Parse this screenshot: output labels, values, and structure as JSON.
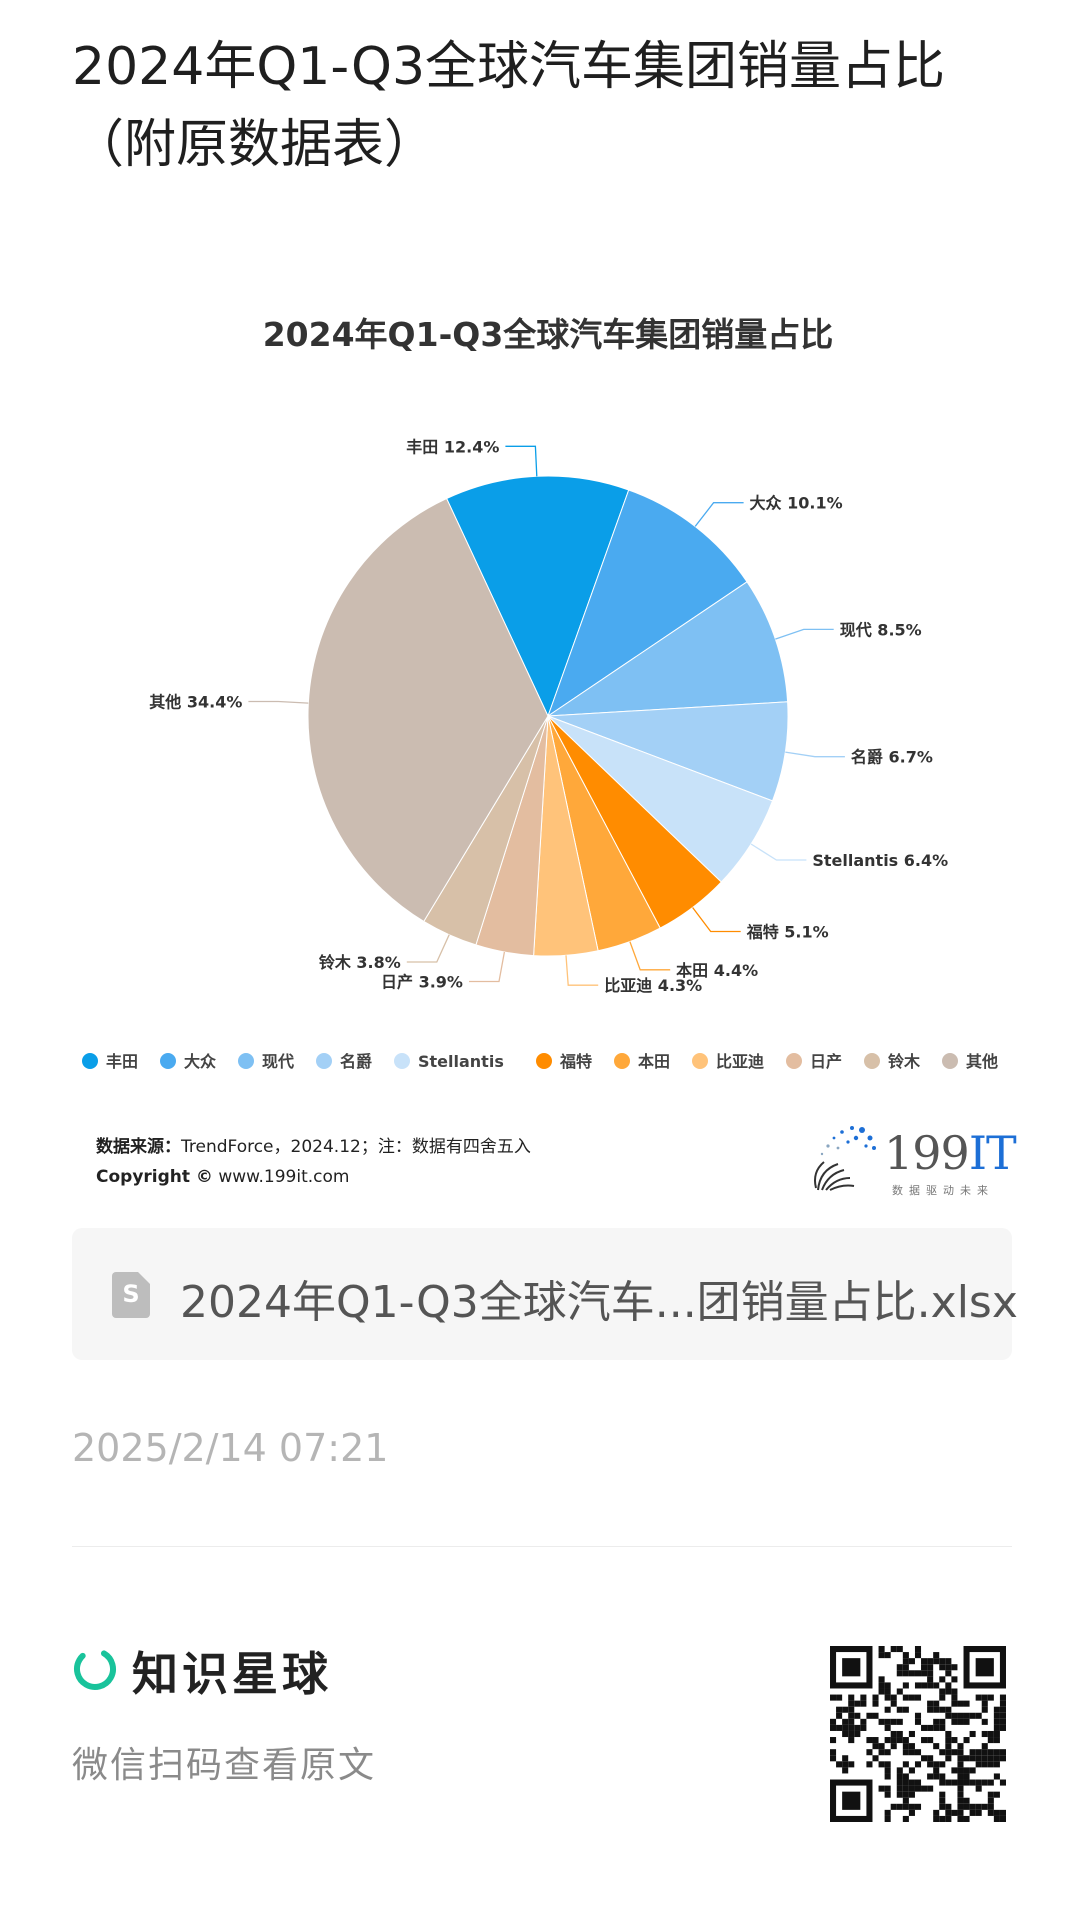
{
  "page": {
    "title": "2024年Q1-Q3全球汽车集团销量占比（附原数据表）"
  },
  "chart_data": {
    "type": "pie",
    "title": "2024年Q1-Q3全球汽车集团销量占比",
    "slices": [
      {
        "name": "丰田",
        "value": 12.4,
        "label": "12.4%",
        "color": "#0a9ee8"
      },
      {
        "name": "大众",
        "value": 10.1,
        "label": "10.1%",
        "color": "#4aaaf0"
      },
      {
        "name": "现代",
        "value": 8.5,
        "label": "8.5%",
        "color": "#7ec0f3"
      },
      {
        "name": "名爵",
        "value": 6.7,
        "label": "6.7%",
        "color": "#a3d0f6"
      },
      {
        "name": "Stellantis",
        "value": 6.4,
        "label": "6.4%",
        "color": "#c8e2f9"
      },
      {
        "name": "福特",
        "value": 5.1,
        "label": "5.1%",
        "color": "#ff8c00"
      },
      {
        "name": "本田",
        "value": 4.4,
        "label": "4.4%",
        "color": "#ffa83a"
      },
      {
        "name": "比亚迪",
        "value": 4.3,
        "label": "4.3%",
        "color": "#ffc37a"
      },
      {
        "name": "日产",
        "value": 3.9,
        "label": "3.9%",
        "color": "#e3bda0"
      },
      {
        "name": "铃木",
        "value": 3.8,
        "label": "3.8%",
        "color": "#d7c0a8"
      },
      {
        "name": "其他",
        "value": 34.4,
        "label": "34.4%",
        "color": "#cbbcb1"
      }
    ],
    "legend_position": "bottom"
  },
  "source": {
    "label": "数据来源：",
    "text": "TrendForce，2024.12；注：数据有四舍五入",
    "copyright_label": "Copyright ©",
    "copyright_text": "www.199it.com"
  },
  "logo": {
    "name_digits": "199",
    "name_it": "IT",
    "tagline": "数据驱动未来"
  },
  "file_card": {
    "icon_letter": "S",
    "filename": "2024年Q1-Q3全球汽车...团销量占比.xlsx"
  },
  "timestamp": "2025/2/14 07:21",
  "footer": {
    "brand": "知识星球",
    "hint": "微信扫码查看原文"
  },
  "icons": {
    "file": "spreadsheet-file-icon",
    "brand": "zsxq-logo-icon",
    "qr": "qr-code"
  }
}
